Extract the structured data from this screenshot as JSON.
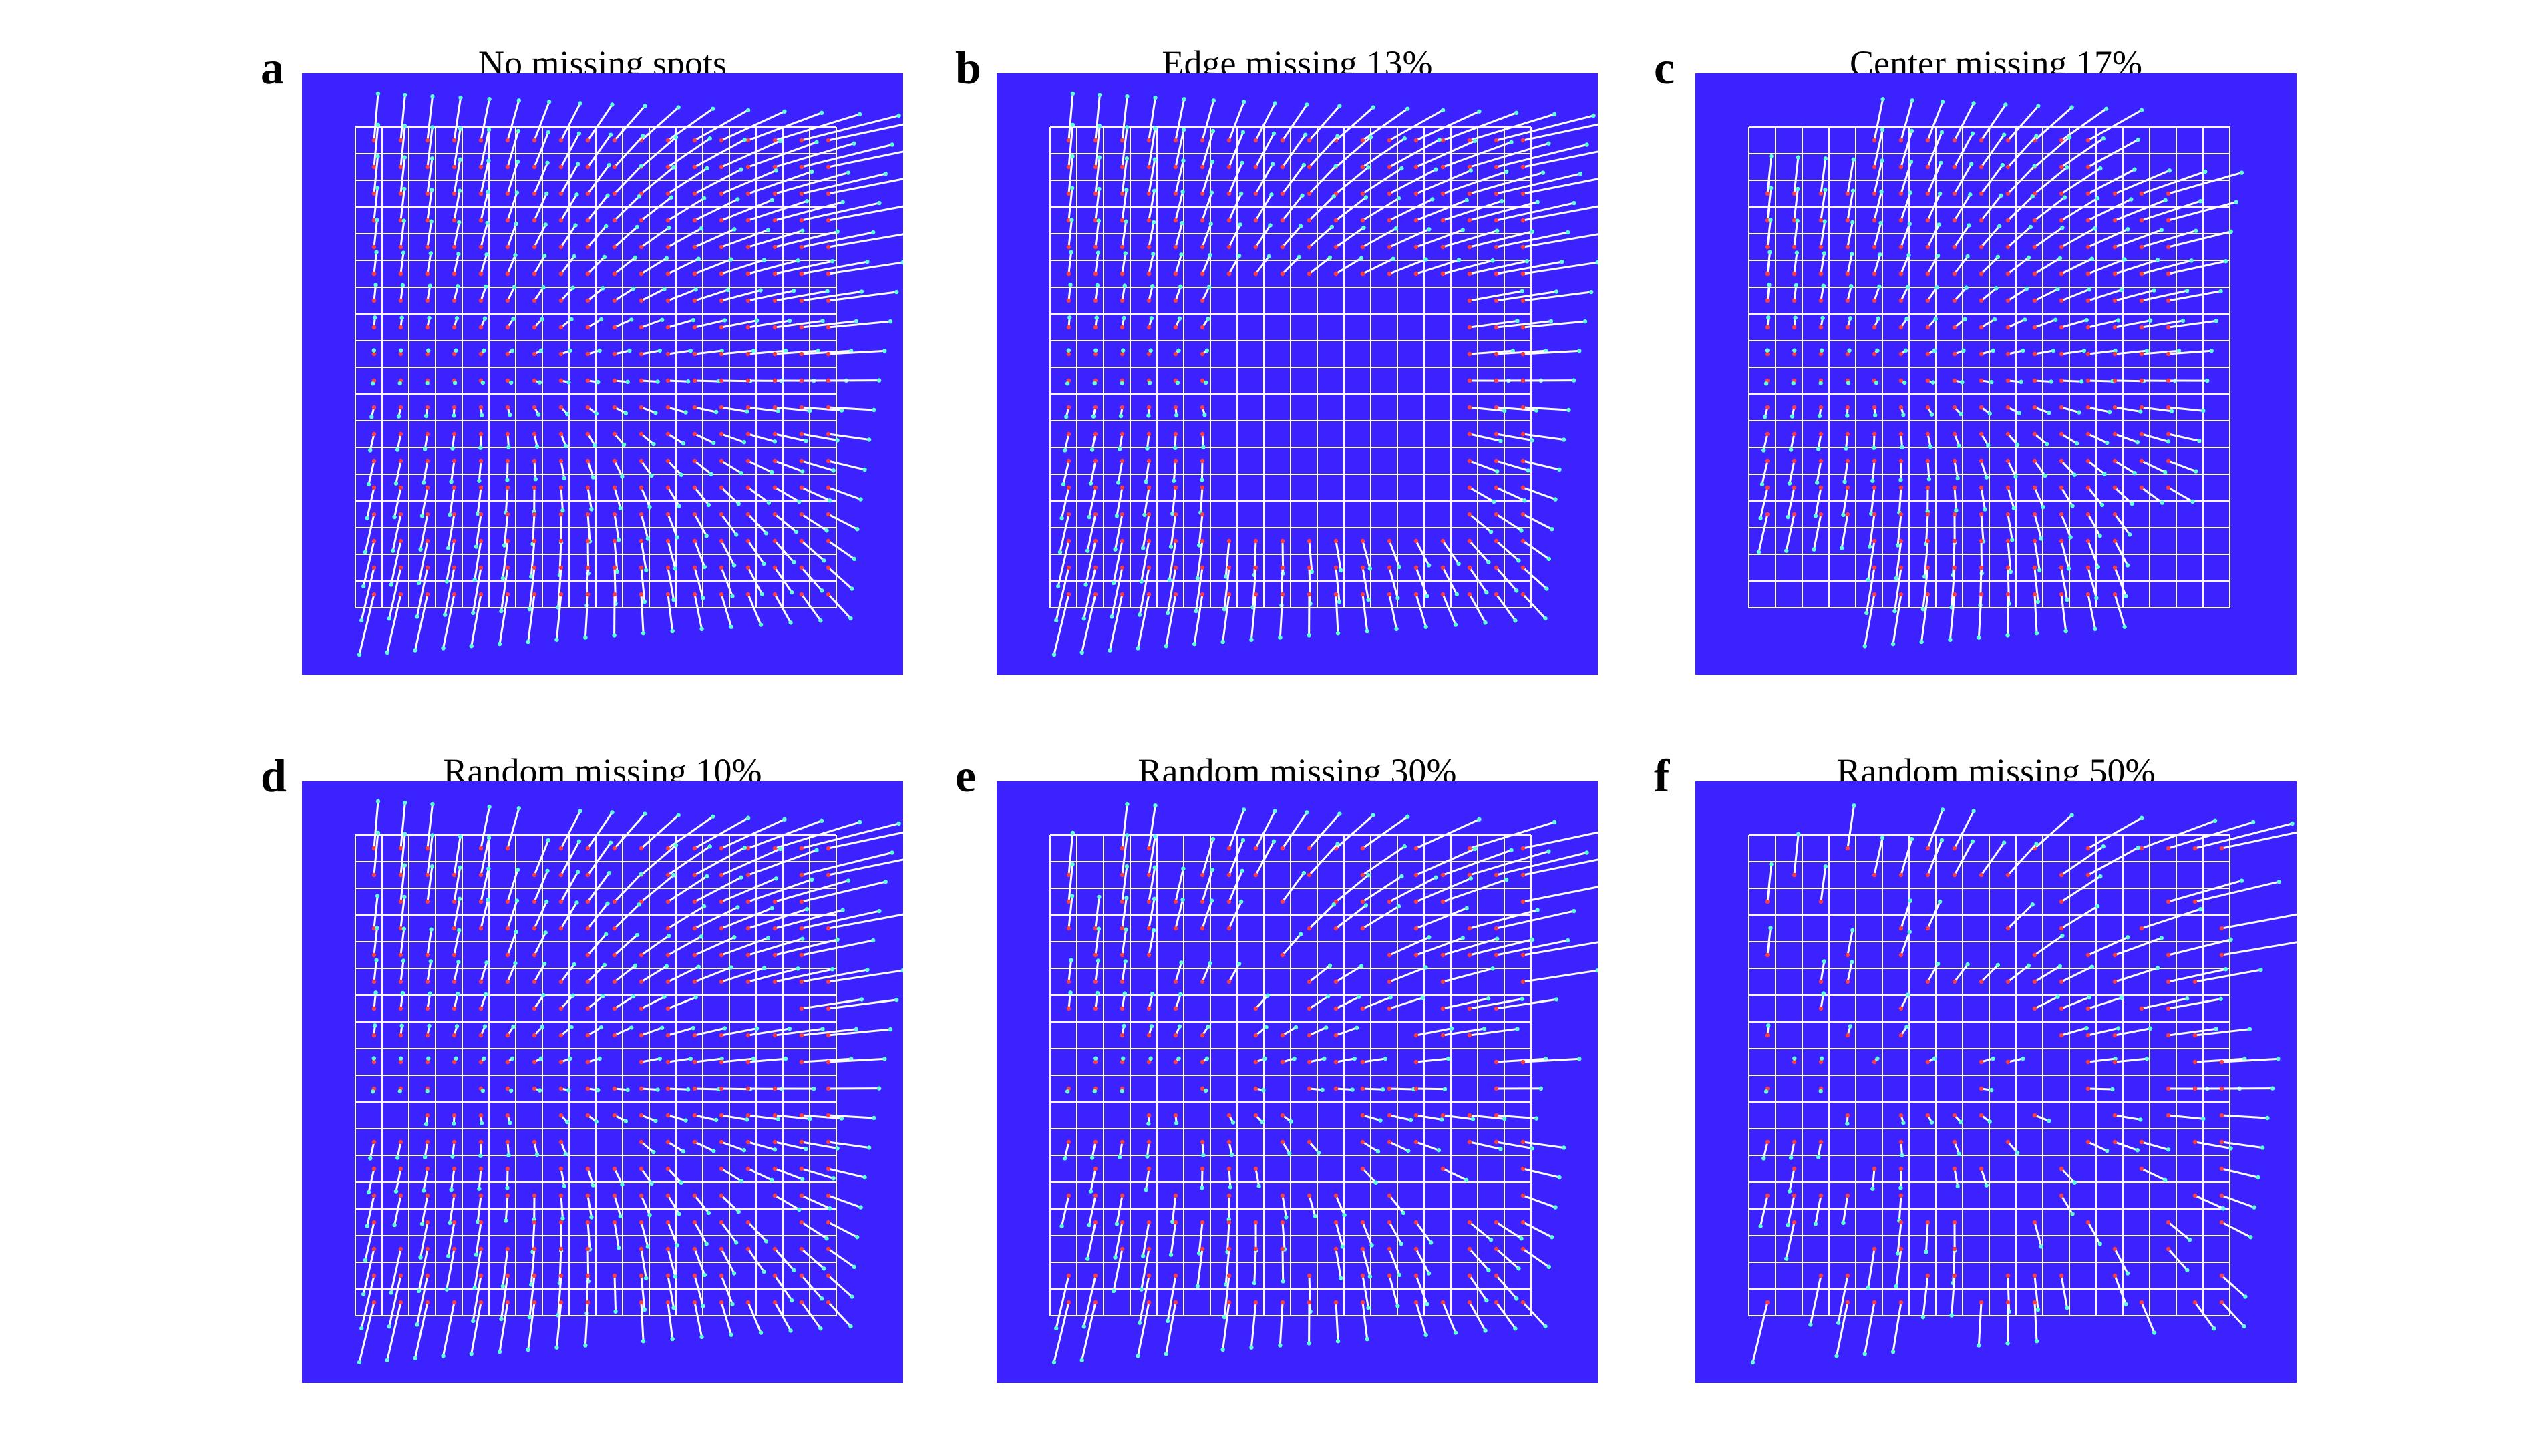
{
  "figure": {
    "colors": {
      "background": "#3b22ff",
      "grid": "#ffffff",
      "vector": "#ffffff",
      "tip": "#60ffd8",
      "origin": "#ff3b3b"
    },
    "panels": [
      {
        "letter": "a",
        "title": "No missing spots"
      },
      {
        "letter": "b",
        "title": "Edge missing 13%"
      },
      {
        "letter": "c",
        "title": "Center missing 17%"
      },
      {
        "letter": "d",
        "title": "Random missing 10%"
      },
      {
        "letter": "e",
        "title": "Random missing 30%"
      },
      {
        "letter": "f",
        "title": "Random missing 50%"
      }
    ]
  }
}
